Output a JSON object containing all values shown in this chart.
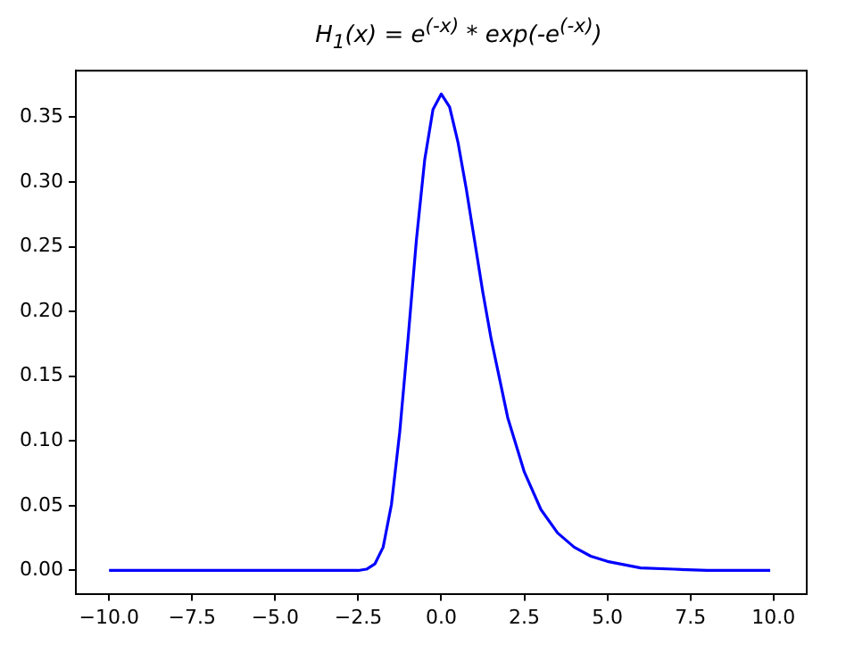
{
  "chart_data": {
    "type": "line",
    "title": "H$_{1}$(x) = e$^{(-x)}$ * exp(-e$^{(-x)}$)",
    "x": [
      -10,
      -7.5,
      -5,
      -3,
      -2.5,
      -2.25,
      -2,
      -1.75,
      -1.5,
      -1.25,
      -1,
      -0.75,
      -0.5,
      -0.25,
      0,
      0.25,
      0.5,
      0.75,
      1,
      1.25,
      1.5,
      2,
      2.5,
      3,
      3.5,
      4,
      4.5,
      5,
      6,
      7,
      8,
      9.9
    ],
    "series": [
      {
        "color": "#0000ff",
        "values": [
          0,
          0,
          0,
          0,
          0,
          0.001,
          0.005,
          0.018,
          0.051,
          0.107,
          0.179,
          0.255,
          0.317,
          0.356,
          0.368,
          0.358,
          0.331,
          0.295,
          0.255,
          0.215,
          0.179,
          0.118,
          0.076,
          0.047,
          0.029,
          0.018,
          0.011,
          0.007,
          0.002,
          0.001,
          0,
          0
        ]
      }
    ],
    "xlim": [
      -11,
      11
    ],
    "xticks": [
      {
        "value": -10,
        "label": "−10.0"
      },
      {
        "value": -7.5,
        "label": "−7.5"
      },
      {
        "value": -5,
        "label": "−5.0"
      },
      {
        "value": -2.5,
        "label": "−2.5"
      },
      {
        "value": 0,
        "label": "0.0"
      },
      {
        "value": 2.5,
        "label": "2.5"
      },
      {
        "value": 5,
        "label": "5.0"
      },
      {
        "value": 7.5,
        "label": "7.5"
      },
      {
        "value": 10,
        "label": "10.0"
      }
    ],
    "ylim": [
      -0.018,
      0.386
    ],
    "yticks": [
      {
        "value": 0,
        "label": "0.00"
      },
      {
        "value": 0.05,
        "label": "0.05"
      },
      {
        "value": 0.1,
        "label": "0.10"
      },
      {
        "value": 0.15,
        "label": "0.15"
      },
      {
        "value": 0.2,
        "label": "0.20"
      },
      {
        "value": 0.25,
        "label": "0.25"
      },
      {
        "value": 0.3,
        "label": "0.30"
      },
      {
        "value": 0.35,
        "label": "0.35"
      }
    ],
    "grid": false,
    "marker": "none",
    "line_style": "solid",
    "legend": false
  }
}
